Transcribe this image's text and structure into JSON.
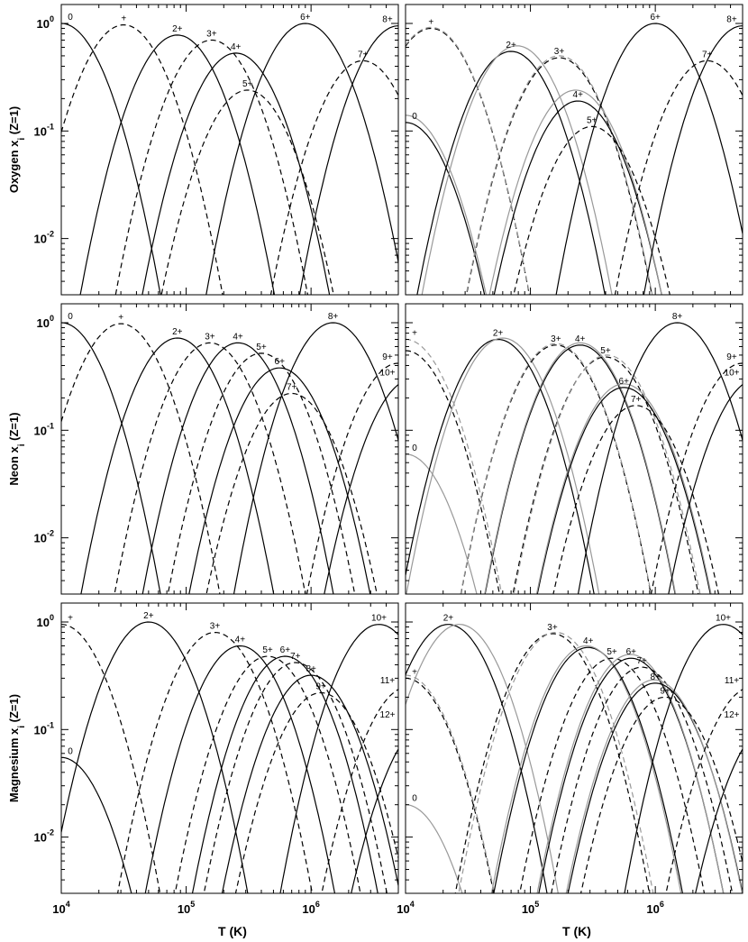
{
  "figure": {
    "x_axis_label": "T (K)",
    "x_tick_labels": [
      {
        "base": "10",
        "exp": "4",
        "value": 10000.0
      },
      {
        "base": "10",
        "exp": "5",
        "value": 100000.0
      },
      {
        "base": "10",
        "exp": "6",
        "value": 1000000.0
      }
    ],
    "y_tick_labels": [
      {
        "base": "10",
        "exp": "0",
        "value": 1
      },
      {
        "base": "10",
        "exp": "-1",
        "value": 0.1
      },
      {
        "base": "10",
        "exp": "-2",
        "value": 0.01
      }
    ],
    "rows": [
      {
        "element": "Oxygen",
        "y_axis_label": [
          "Oxygen",
          "x",
          "i",
          "(Z=1)"
        ]
      },
      {
        "element": "Neon",
        "y_axis_label": [
          "Neon",
          "x",
          "i",
          "(Z=1)"
        ]
      },
      {
        "element": "Magnesium",
        "y_axis_label": [
          "Magnesium",
          "x",
          "i",
          "(Z=1)"
        ]
      }
    ]
  },
  "chart_data": [
    {
      "type": "line",
      "element": "Oxygen",
      "column": "left",
      "x_scale": "log",
      "y_scale": "log",
      "xlim": [
        10000,
        5000000
      ],
      "ylim": [
        0.003,
        1.5
      ],
      "series": [
        {
          "label": "0",
          "peak_T": 10000,
          "peak": 1.0,
          "style": "solid",
          "color": "#000000"
        },
        {
          "label": "+",
          "peak_T": 31600,
          "peak": 0.97,
          "style": "dashed",
          "color": "#000000"
        },
        {
          "label": "2+",
          "peak_T": 85000,
          "peak": 0.78,
          "style": "solid",
          "color": "#000000"
        },
        {
          "label": "3+",
          "peak_T": 160000,
          "peak": 0.7,
          "style": "dashed",
          "color": "#000000"
        },
        {
          "label": "4+",
          "peak_T": 250000,
          "peak": 0.53,
          "style": "solid",
          "color": "#000000"
        },
        {
          "label": "5+",
          "peak_T": 310000,
          "peak": 0.24,
          "style": "dashed",
          "color": "#000000"
        },
        {
          "label": "6+",
          "peak_T": 900000,
          "peak": 1.0,
          "style": "solid",
          "color": "#000000"
        },
        {
          "label": "7+",
          "peak_T": 2600000,
          "peak": 0.45,
          "style": "dashed",
          "color": "#000000"
        },
        {
          "label": "8+",
          "peak_T": 5000000,
          "peak": 0.95,
          "style": "solid",
          "color": "#000000"
        }
      ],
      "annotations": [
        "0",
        "+",
        "2+",
        "3+",
        "4+",
        "5+",
        "6+",
        "7+",
        "8+"
      ]
    },
    {
      "type": "line",
      "element": "Oxygen",
      "column": "right",
      "x_scale": "log",
      "y_scale": "log",
      "xlim": [
        10000,
        5000000
      ],
      "ylim": [
        0.003,
        1.5
      ],
      "series": [
        {
          "label": "0",
          "peak_T": 10000,
          "peak": 0.12,
          "style": "solid",
          "color": "#000000"
        },
        {
          "label": "0",
          "peak_T": 10000,
          "peak": 0.14,
          "style": "solid",
          "color": "#999999"
        },
        {
          "label": "+",
          "peak_T": 16000,
          "peak": 0.9,
          "style": "dashed",
          "color": "#000000"
        },
        {
          "label": "+",
          "peak_T": 16000,
          "peak": 0.92,
          "style": "dashed",
          "color": "#999999"
        },
        {
          "label": "2+",
          "peak_T": 70000,
          "peak": 0.55,
          "style": "solid",
          "color": "#000000"
        },
        {
          "label": "2+",
          "peak_T": 78000,
          "peak": 0.62,
          "style": "solid",
          "color": "#999999"
        },
        {
          "label": "3+",
          "peak_T": 170000,
          "peak": 0.48,
          "style": "dashed",
          "color": "#000000"
        },
        {
          "label": "3+",
          "peak_T": 170000,
          "peak": 0.5,
          "style": "dashed",
          "color": "#999999"
        },
        {
          "label": "4+",
          "peak_T": 240000,
          "peak": 0.19,
          "style": "solid",
          "color": "#000000"
        },
        {
          "label": "4+",
          "peak_T": 230000,
          "peak": 0.24,
          "style": "solid",
          "color": "#999999"
        },
        {
          "label": "5+",
          "peak_T": 310000,
          "peak": 0.11,
          "style": "dashed",
          "color": "#000000"
        },
        {
          "label": "6+",
          "peak_T": 1000000,
          "peak": 1.0,
          "style": "solid",
          "color": "#000000"
        },
        {
          "label": "7+",
          "peak_T": 2600000,
          "peak": 0.45,
          "style": "dashed",
          "color": "#000000"
        },
        {
          "label": "8+",
          "peak_T": 5000000,
          "peak": 0.95,
          "style": "solid",
          "color": "#000000"
        }
      ],
      "annotations": [
        "0",
        "+",
        "2+",
        "3+",
        "4+",
        "5+",
        "6+",
        "7+",
        "8+"
      ]
    },
    {
      "type": "line",
      "element": "Neon",
      "column": "left",
      "x_scale": "log",
      "y_scale": "log",
      "xlim": [
        10000,
        5000000
      ],
      "ylim": [
        0.003,
        1.5
      ],
      "series": [
        {
          "label": "0",
          "peak_T": 10000,
          "peak": 1.0,
          "style": "solid",
          "color": "#000000"
        },
        {
          "label": "+",
          "peak_T": 30000,
          "peak": 0.98,
          "style": "dashed",
          "color": "#000000"
        },
        {
          "label": "2+",
          "peak_T": 85000,
          "peak": 0.72,
          "style": "solid",
          "color": "#000000"
        },
        {
          "label": "3+",
          "peak_T": 155000,
          "peak": 0.65,
          "style": "dashed",
          "color": "#000000"
        },
        {
          "label": "4+",
          "peak_T": 260000,
          "peak": 0.65,
          "style": "solid",
          "color": "#000000"
        },
        {
          "label": "5+",
          "peak_T": 400000,
          "peak": 0.52,
          "style": "dashed",
          "color": "#000000"
        },
        {
          "label": "6+",
          "peak_T": 560000,
          "peak": 0.38,
          "style": "solid",
          "color": "#000000"
        },
        {
          "label": "7+",
          "peak_T": 700000,
          "peak": 0.22,
          "style": "dashed",
          "color": "#000000"
        },
        {
          "label": "8+",
          "peak_T": 1500000,
          "peak": 1.0,
          "style": "solid",
          "color": "#000000"
        },
        {
          "label": "9+",
          "peak_T": 5000000,
          "peak": 0.42,
          "style": "dashed",
          "color": "#000000"
        },
        {
          "label": "10+",
          "peak_T": 6500000,
          "peak": 0.3,
          "style": "solid",
          "color": "#000000"
        }
      ],
      "annotations": [
        "0",
        "+",
        "2+",
        "3+",
        "4+",
        "5+",
        "6+",
        "7+",
        "8+",
        "9+",
        "10+"
      ]
    },
    {
      "type": "line",
      "element": "Neon",
      "column": "right",
      "x_scale": "log",
      "y_scale": "log",
      "xlim": [
        10000,
        5000000
      ],
      "ylim": [
        0.003,
        1.5
      ],
      "series": [
        {
          "label": "0",
          "peak_T": 10000,
          "peak": 0.06,
          "style": "solid",
          "color": "#999999"
        },
        {
          "label": "+",
          "peak_T": 10000,
          "peak": 0.7,
          "style": "dashed",
          "color": "#999999"
        },
        {
          "label": "+",
          "peak_T": 10000,
          "peak": 0.55,
          "style": "dashed",
          "color": "#000000"
        },
        {
          "label": "2+",
          "peak_T": 55000,
          "peak": 0.7,
          "style": "solid",
          "color": "#000000"
        },
        {
          "label": "2+",
          "peak_T": 60000,
          "peak": 0.72,
          "style": "solid",
          "color": "#999999"
        },
        {
          "label": "3+",
          "peak_T": 160000,
          "peak": 0.62,
          "style": "dashed",
          "color": "#000000"
        },
        {
          "label": "3+",
          "peak_T": 160000,
          "peak": 0.64,
          "style": "dashed",
          "color": "#999999"
        },
        {
          "label": "4+",
          "peak_T": 250000,
          "peak": 0.62,
          "style": "solid",
          "color": "#000000"
        },
        {
          "label": "4+",
          "peak_T": 250000,
          "peak": 0.65,
          "style": "solid",
          "color": "#999999"
        },
        {
          "label": "5+",
          "peak_T": 400000,
          "peak": 0.48,
          "style": "dashed",
          "color": "#000000"
        },
        {
          "label": "5+",
          "peak_T": 410000,
          "peak": 0.5,
          "style": "dashed",
          "color": "#999999"
        },
        {
          "label": "6+",
          "peak_T": 560000,
          "peak": 0.25,
          "style": "solid",
          "color": "#000000"
        },
        {
          "label": "6+",
          "peak_T": 560000,
          "peak": 0.27,
          "style": "solid",
          "color": "#999999"
        },
        {
          "label": "7+",
          "peak_T": 700000,
          "peak": 0.17,
          "style": "dashed",
          "color": "#000000"
        },
        {
          "label": "8+",
          "peak_T": 1500000,
          "peak": 1.0,
          "style": "solid",
          "color": "#000000"
        },
        {
          "label": "9+",
          "peak_T": 5000000,
          "peak": 0.42,
          "style": "dashed",
          "color": "#000000"
        },
        {
          "label": "10+",
          "peak_T": 6500000,
          "peak": 0.3,
          "style": "solid",
          "color": "#000000"
        }
      ],
      "annotations": [
        "0",
        "+",
        "2+",
        "3+",
        "4+",
        "5+",
        "6+",
        "7+",
        "8+",
        "9+",
        "10+"
      ]
    },
    {
      "type": "line",
      "element": "Magnesium",
      "column": "left",
      "x_scale": "log",
      "y_scale": "log",
      "xlim": [
        10000,
        5000000
      ],
      "ylim": [
        0.003,
        1.5
      ],
      "series": [
        {
          "label": "0",
          "peak_T": 10000,
          "peak": 0.055,
          "style": "solid",
          "color": "#000000"
        },
        {
          "label": "+",
          "peak_T": 10000,
          "peak": 0.95,
          "style": "dashed",
          "color": "#000000"
        },
        {
          "label": "2+",
          "peak_T": 50000,
          "peak": 1.0,
          "style": "solid",
          "color": "#000000"
        },
        {
          "label": "3+",
          "peak_T": 170000,
          "peak": 0.8,
          "style": "dashed",
          "color": "#000000"
        },
        {
          "label": "4+",
          "peak_T": 270000,
          "peak": 0.6,
          "style": "solid",
          "color": "#000000"
        },
        {
          "label": "5+",
          "peak_T": 450000,
          "peak": 0.48,
          "style": "dashed",
          "color": "#000000"
        },
        {
          "label": "6+",
          "peak_T": 620000,
          "peak": 0.48,
          "style": "solid",
          "color": "#000000"
        },
        {
          "label": "7+",
          "peak_T": 750000,
          "peak": 0.42,
          "style": "dashed",
          "color": "#000000"
        },
        {
          "label": "8+",
          "peak_T": 1000000,
          "peak": 0.32,
          "style": "solid",
          "color": "#000000"
        },
        {
          "label": "9+",
          "peak_T": 1200000,
          "peak": 0.22,
          "style": "dashed",
          "color": "#000000"
        },
        {
          "label": "10+",
          "peak_T": 3500000,
          "peak": 0.95,
          "style": "solid",
          "color": "#000000"
        },
        {
          "label": "11+",
          "peak_T": 6000000,
          "peak": 0.25,
          "style": "dashed",
          "color": "#000000"
        },
        {
          "label": "12+",
          "peak_T": 9000000,
          "peak": 0.12,
          "style": "solid",
          "color": "#000000"
        }
      ],
      "annotations": [
        "0",
        "+",
        "2+",
        "3+",
        "4+",
        "5+",
        "6+",
        "7+",
        "8+",
        "9+",
        "10+",
        "11+",
        "12+"
      ]
    },
    {
      "type": "line",
      "element": "Magnesium",
      "column": "right",
      "x_scale": "log",
      "y_scale": "log",
      "xlim": [
        10000,
        5000000
      ],
      "ylim": [
        0.003,
        1.5
      ],
      "series": [
        {
          "label": "0",
          "peak_T": 10000,
          "peak": 0.02,
          "style": "solid",
          "color": "#999999"
        },
        {
          "label": "+",
          "peak_T": 10000,
          "peak": 0.3,
          "style": "dashed",
          "color": "#000000"
        },
        {
          "label": "+",
          "peak_T": 10000,
          "peak": 0.32,
          "style": "dashed",
          "color": "#999999"
        },
        {
          "label": "2+",
          "peak_T": 22000,
          "peak": 0.95,
          "style": "solid",
          "color": "#000000"
        },
        {
          "label": "2+",
          "peak_T": 27000,
          "peak": 0.95,
          "style": "solid",
          "color": "#999999"
        },
        {
          "label": "3+",
          "peak_T": 150000,
          "peak": 0.78,
          "style": "dashed",
          "color": "#000000"
        },
        {
          "label": "3+",
          "peak_T": 160000,
          "peak": 0.8,
          "style": "dashed",
          "color": "#999999"
        },
        {
          "label": "4+",
          "peak_T": 290000,
          "peak": 0.58,
          "style": "solid",
          "color": "#000000"
        },
        {
          "label": "4+",
          "peak_T": 280000,
          "peak": 0.6,
          "style": "solid",
          "color": "#999999"
        },
        {
          "label": "5+",
          "peak_T": 450000,
          "peak": 0.46,
          "style": "dashed",
          "color": "#000000"
        },
        {
          "label": "6+",
          "peak_T": 640000,
          "peak": 0.46,
          "style": "solid",
          "color": "#000000"
        },
        {
          "label": "6+",
          "peak_T": 630000,
          "peak": 0.5,
          "style": "solid",
          "color": "#999999"
        },
        {
          "label": "7+",
          "peak_T": 780000,
          "peak": 0.38,
          "style": "dashed",
          "color": "#000000"
        },
        {
          "label": "8+",
          "peak_T": 1000000,
          "peak": 0.27,
          "style": "solid",
          "color": "#000000"
        },
        {
          "label": "8+",
          "peak_T": 980000,
          "peak": 0.29,
          "style": "solid",
          "color": "#999999"
        },
        {
          "label": "9+",
          "peak_T": 1200000,
          "peak": 0.2,
          "style": "dashed",
          "color": "#000000"
        },
        {
          "label": "10+",
          "peak_T": 3500000,
          "peak": 0.95,
          "style": "solid",
          "color": "#000000"
        },
        {
          "label": "11+",
          "peak_T": 6000000,
          "peak": 0.25,
          "style": "dashed",
          "color": "#000000"
        },
        {
          "label": "12+",
          "peak_T": 9000000,
          "peak": 0.12,
          "style": "solid",
          "color": "#000000"
        }
      ],
      "annotations": [
        "0",
        "+",
        "2+",
        "3+",
        "4+",
        "5+",
        "6+",
        "7+",
        "8+",
        "9+",
        "10+",
        "11+",
        "12+"
      ]
    }
  ]
}
